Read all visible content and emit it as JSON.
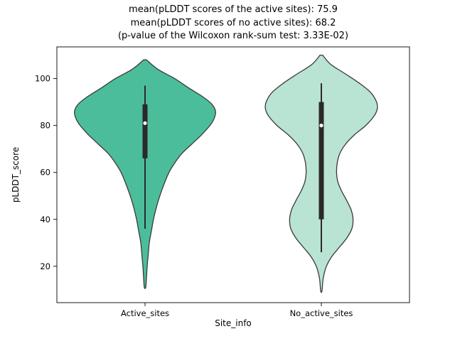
{
  "chart_data": {
    "type": "violin",
    "title_lines": [
      "mean(pLDDT scores of the active sites): 75.9",
      "mean(pLDDT scores of no active sites): 68.2",
      "(p-value of the Wilcoxon rank-sum test: 3.33E-02)"
    ],
    "xlabel": "Site_info",
    "ylabel": "pLDDT_score",
    "categories": [
      "Active_sites",
      "No_active_sites"
    ],
    "yticks": [
      20,
      40,
      60,
      80,
      100
    ],
    "ylim": [
      4.5,
      113.5
    ],
    "legend": "none",
    "grid": false,
    "series": [
      {
        "name": "Active_sites",
        "fill_color": "#4cbd9b",
        "edge_color": "#3a3a3a",
        "mean": 75.9,
        "median": 81,
        "q1": 66,
        "q3": 89,
        "whisker_low": 36,
        "whisker_high": 97,
        "min": 11,
        "max": 108,
        "rel_width": 1.0,
        "profile": [
          [
            108,
            0.02
          ],
          [
            104,
            0.18
          ],
          [
            100,
            0.42
          ],
          [
            96,
            0.62
          ],
          [
            92,
            0.83
          ],
          [
            89,
            0.95
          ],
          [
            86,
            1.0
          ],
          [
            83,
            0.98
          ],
          [
            80,
            0.92
          ],
          [
            76,
            0.8
          ],
          [
            72,
            0.66
          ],
          [
            68,
            0.52
          ],
          [
            64,
            0.42
          ],
          [
            60,
            0.34
          ],
          [
            55,
            0.27
          ],
          [
            50,
            0.21
          ],
          [
            45,
            0.16
          ],
          [
            40,
            0.12
          ],
          [
            35,
            0.09
          ],
          [
            30,
            0.06
          ],
          [
            25,
            0.045
          ],
          [
            20,
            0.03
          ],
          [
            15,
            0.02
          ],
          [
            11,
            0.01
          ]
        ]
      },
      {
        "name": "No_active_sites",
        "fill_color": "#b9e3d3",
        "edge_color": "#3a3a3a",
        "mean": 68.2,
        "median": 80,
        "q1": 40,
        "q3": 90,
        "whisker_low": 26,
        "whisker_high": 98,
        "min": 9.5,
        "max": 110,
        "rel_width": 0.9,
        "profile": [
          [
            110,
            0.02
          ],
          [
            106,
            0.15
          ],
          [
            102,
            0.38
          ],
          [
            98,
            0.6
          ],
          [
            94,
            0.78
          ],
          [
            90,
            0.87
          ],
          [
            87,
            0.88
          ],
          [
            84,
            0.83
          ],
          [
            80,
            0.7
          ],
          [
            76,
            0.52
          ],
          [
            72,
            0.38
          ],
          [
            68,
            0.29
          ],
          [
            64,
            0.25
          ],
          [
            60,
            0.24
          ],
          [
            56,
            0.26
          ],
          [
            52,
            0.32
          ],
          [
            48,
            0.4
          ],
          [
            44,
            0.47
          ],
          [
            40,
            0.5
          ],
          [
            36,
            0.48
          ],
          [
            32,
            0.4
          ],
          [
            28,
            0.28
          ],
          [
            24,
            0.16
          ],
          [
            20,
            0.08
          ],
          [
            15,
            0.03
          ],
          [
            9.5,
            0.01
          ]
        ]
      }
    ]
  }
}
